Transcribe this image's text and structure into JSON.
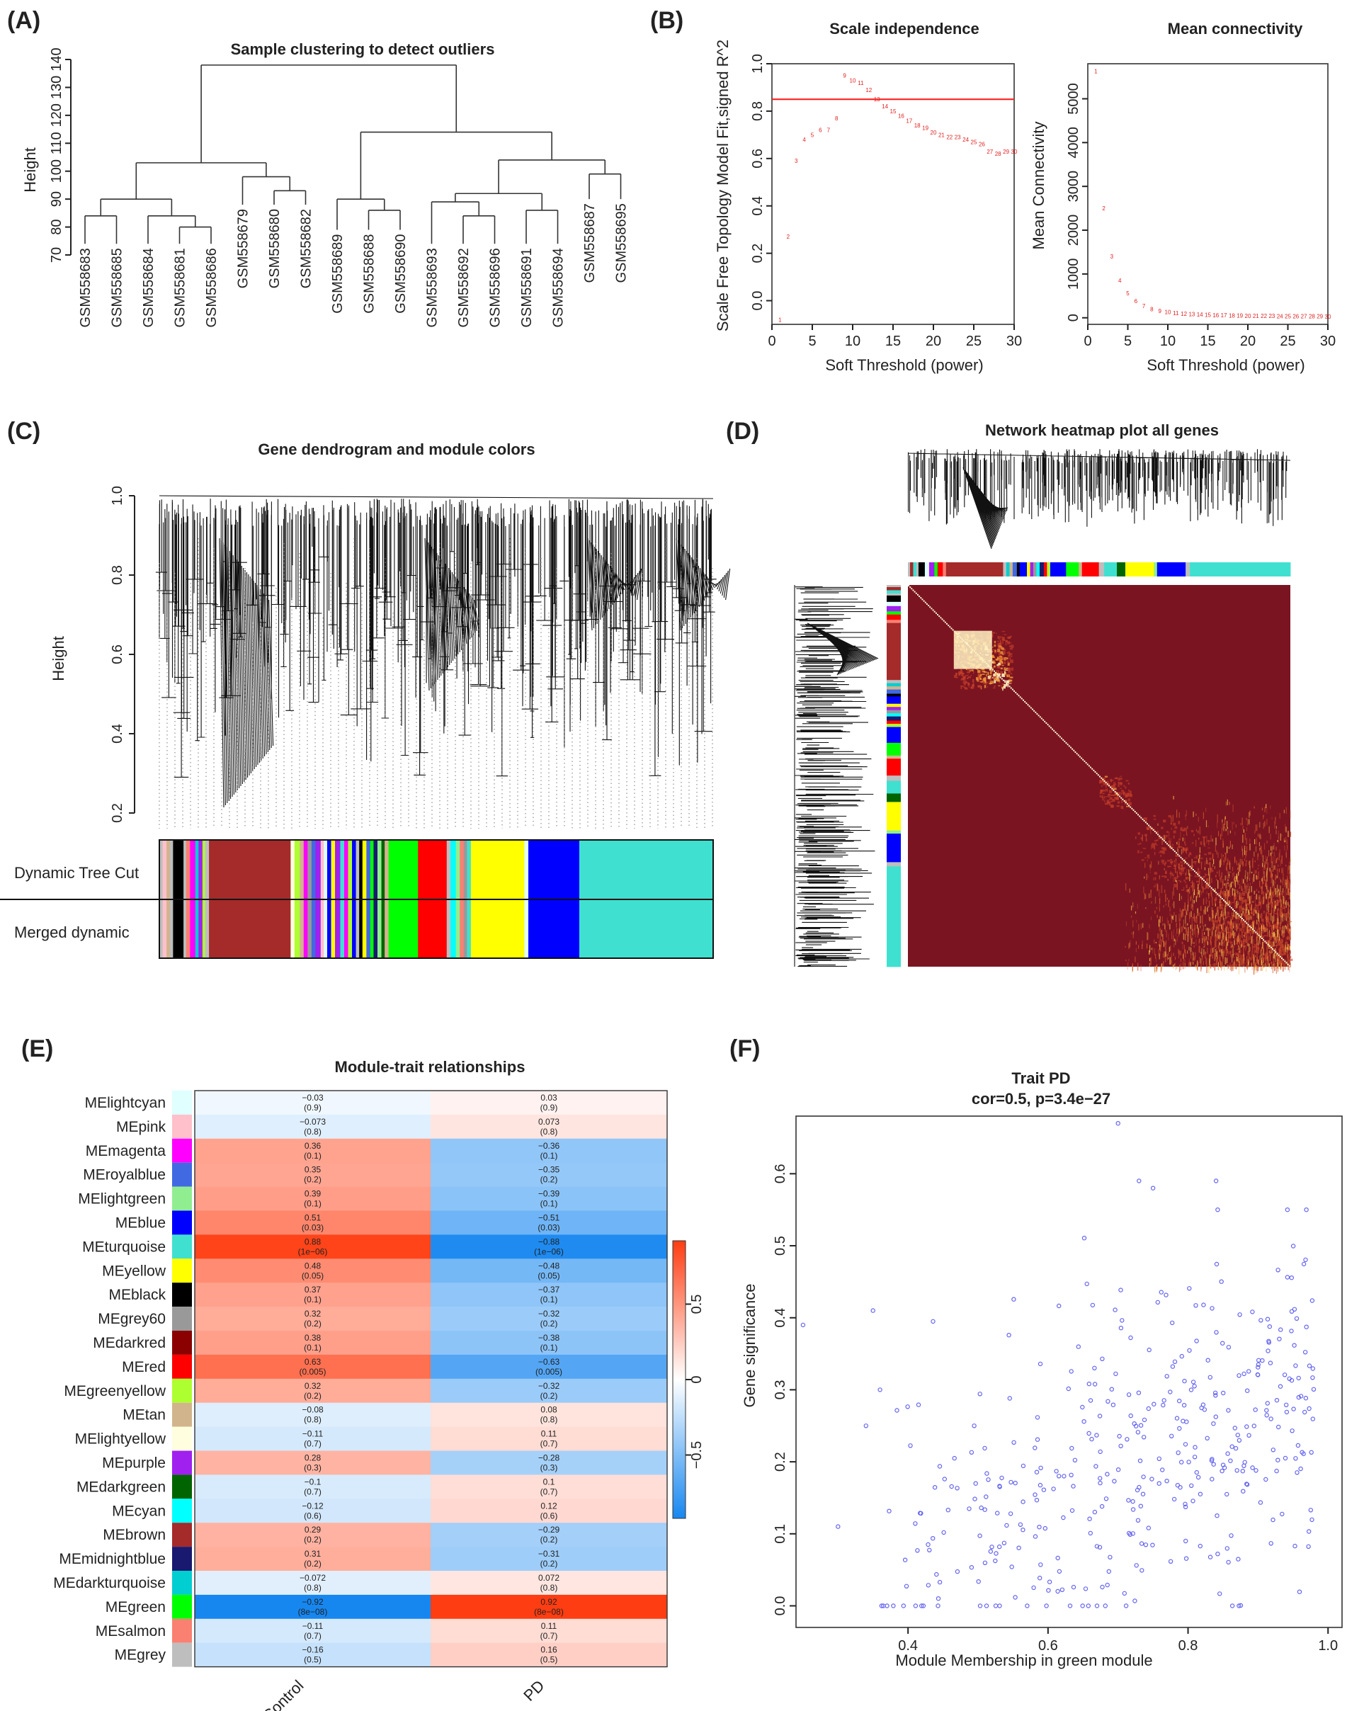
{
  "colors": {
    "red_line": "#ff2020",
    "point_red": "#e02020",
    "scatter_blue": "#6464f0",
    "heat_dark": "#7b1421",
    "pos_red": "#ff3d12",
    "neg_blue": "#1787f0"
  },
  "module_colors": {
    "lightcyan": "#e0ffff",
    "pink": "#ffc0cb",
    "magenta": "#ff00ff",
    "royalblue": "#4169e1",
    "lightgreen": "#90ee90",
    "blue": "#0000ff",
    "turquoise": "#40e0d0",
    "yellow": "#ffff00",
    "black": "#000000",
    "grey60": "#999999",
    "darkred": "#8b0000",
    "red": "#ff0000",
    "greenyellow": "#adff2f",
    "tan": "#d2b48c",
    "lightyellow": "#ffffe0",
    "purple": "#a020f0",
    "darkgreen": "#006400",
    "cyan": "#00ffff",
    "brown": "#a52a2a",
    "midnightblue": "#191970",
    "darkturquoise": "#00ced1",
    "green": "#00ff00",
    "salmon": "#fa8072",
    "grey": "#bebebe"
  },
  "chart_data": [
    {
      "id": "A",
      "type": "dendrogram",
      "panel_label": "(A)",
      "title": "Sample clustering to detect outliers",
      "ylabel": "Height",
      "ylim": [
        70,
        140
      ],
      "yticks": [
        "70",
        "80",
        "90",
        "100",
        "110",
        "120",
        "130",
        "140"
      ],
      "leaves": [
        "GSM558683",
        "GSM558685",
        "GSM558684",
        "GSM558681",
        "GSM558686",
        "GSM558679",
        "GSM558680",
        "GSM558682",
        "GSM558689",
        "GSM558688",
        "GSM558690",
        "GSM558693",
        "GSM558692",
        "GSM558696",
        "GSM558691",
        "GSM558694",
        "GSM558687",
        "GSM558695"
      ],
      "merges": [
        [
          3,
          4,
          80
        ],
        [
          0,
          1,
          84
        ],
        [
          2,
          "c0",
          84
        ],
        [
          "c1",
          "c2",
          90
        ],
        [
          6,
          7,
          93
        ],
        [
          5,
          "c4",
          98
        ],
        [
          "c3",
          "c5",
          103
        ],
        [
          9,
          10,
          86
        ],
        [
          8,
          "c7",
          90
        ],
        [
          14,
          15,
          86
        ],
        [
          12,
          13,
          84
        ],
        [
          11,
          "c10",
          89
        ],
        [
          "c11",
          "c9",
          92
        ],
        [
          16,
          17,
          99
        ],
        [
          "c12",
          "c13",
          104
        ],
        [
          "c8",
          "c14",
          114
        ],
        [
          "c6",
          "c15",
          138
        ]
      ]
    },
    {
      "id": "B1",
      "type": "scatter",
      "panel_label": "(B)",
      "title": "Scale independence",
      "xlabel": "Soft Threshold (power)",
      "ylabel": "Scale Free Topology Model Fit,signed R^2",
      "xlim": [
        0,
        30
      ],
      "ylim": [
        -0.1,
        1.0
      ],
      "xticks": [
        "0",
        "5",
        "10",
        "15",
        "20",
        "25",
        "30"
      ],
      "yticks": [
        "0.0",
        "0.2",
        "0.4",
        "0.6",
        "0.8",
        "1.0"
      ],
      "hline": 0.85,
      "x": [
        1,
        2,
        3,
        4,
        5,
        6,
        7,
        8,
        9,
        10,
        11,
        12,
        13,
        14,
        15,
        16,
        17,
        18,
        19,
        20,
        21,
        22,
        23,
        24,
        25,
        26,
        27,
        28,
        29,
        30
      ],
      "y": [
        -0.08,
        0.27,
        0.59,
        0.68,
        0.7,
        0.72,
        0.72,
        0.77,
        0.95,
        0.93,
        0.92,
        0.89,
        0.85,
        0.82,
        0.8,
        0.78,
        0.76,
        0.74,
        0.73,
        0.71,
        0.7,
        0.69,
        0.69,
        0.68,
        0.67,
        0.66,
        0.63,
        0.62,
        0.63,
        0.63
      ],
      "labels": [
        "1",
        "2",
        "3",
        "4",
        "5",
        "6",
        "7",
        "8",
        "9",
        "10",
        "11",
        "12",
        "13",
        "14",
        "15",
        "16",
        "17",
        "18",
        "19",
        "20",
        "21",
        "22",
        "23",
        "24",
        "25",
        "26",
        "27",
        "28",
        "29",
        "30"
      ]
    },
    {
      "id": "B2",
      "type": "scatter",
      "title": "Mean connectivity",
      "xlabel": "Soft Threshold (power)",
      "ylabel": "Mean Connectivity",
      "xlim": [
        0,
        30
      ],
      "ylim": [
        -150,
        5800
      ],
      "xticks": [
        "0",
        "5",
        "10",
        "15",
        "20",
        "25",
        "30"
      ],
      "yticks": [
        "0",
        "1000",
        "2000",
        "3000",
        "4000",
        "5000"
      ],
      "x": [
        1,
        2,
        3,
        4,
        5,
        6,
        7,
        8,
        9,
        10,
        11,
        12,
        13,
        14,
        15,
        16,
        17,
        18,
        19,
        20,
        21,
        22,
        23,
        24,
        25,
        26,
        27,
        28,
        29,
        30
      ],
      "y": [
        5630,
        2500,
        1400,
        850,
        560,
        380,
        270,
        200,
        160,
        130,
        110,
        95,
        85,
        75,
        68,
        62,
        57,
        53,
        50,
        47,
        44,
        42,
        40,
        38,
        36,
        35,
        34,
        33,
        32,
        31
      ],
      "labels": [
        "1",
        "2",
        "3",
        "4",
        "5",
        "6",
        "7",
        "8",
        "9",
        "10",
        "11",
        "12",
        "13",
        "14",
        "15",
        "16",
        "17",
        "18",
        "19",
        "20",
        "21",
        "22",
        "23",
        "24",
        "25",
        "26",
        "27",
        "28",
        "29",
        "30"
      ]
    },
    {
      "id": "C",
      "type": "dendrogram_colorbars",
      "panel_label": "(C)",
      "title": "Gene dendrogram and module colors",
      "ylabel": "Height",
      "ylim": [
        0.2,
        1.0
      ],
      "yticks": [
        "0.2",
        "0.4",
        "0.6",
        "0.8",
        "1.0"
      ],
      "row_labels": [
        "Dynamic Tree Cut",
        "Merged dynamic"
      ],
      "color_segments": [
        [
          "grey",
          0.5
        ],
        [
          "pink",
          0.6
        ],
        [
          "tan",
          0.5
        ],
        [
          "grey",
          0.5
        ],
        [
          "black",
          1.6
        ],
        [
          "grey",
          0.4
        ],
        [
          "salmon",
          0.6
        ],
        [
          "magenta",
          0.8
        ],
        [
          "darkturquoise",
          0.5
        ],
        [
          "purple",
          0.6
        ],
        [
          "greenyellow",
          0.4
        ],
        [
          "grey",
          0.6
        ],
        [
          "brown",
          12.5
        ],
        [
          "lightyellow",
          0.6
        ],
        [
          "greenyellow",
          0.8
        ],
        [
          "tan",
          0.6
        ],
        [
          "magenta",
          0.6
        ],
        [
          "grey60",
          0.6
        ],
        [
          "royalblue",
          0.6
        ],
        [
          "purple",
          0.8
        ],
        [
          "pink",
          0.5
        ],
        [
          "lightcyan",
          0.5
        ],
        [
          "blue",
          0.6
        ],
        [
          "yellow",
          0.6
        ],
        [
          "purple",
          0.8
        ],
        [
          "turquoise",
          0.6
        ],
        [
          "magenta",
          0.6
        ],
        [
          "greenyellow",
          0.6
        ],
        [
          "blue",
          0.6
        ],
        [
          "grey",
          0.5
        ],
        [
          "black",
          0.5
        ],
        [
          "yellow",
          0.6
        ],
        [
          "royalblue",
          0.6
        ],
        [
          "green",
          0.5
        ],
        [
          "midnightblue",
          0.6
        ],
        [
          "lightgreen",
          0.6
        ],
        [
          "darkgreen",
          0.5
        ],
        [
          "tan",
          0.6
        ],
        [
          "green",
          4.5
        ],
        [
          "red",
          4.4
        ],
        [
          "grey",
          0.6
        ],
        [
          "cyan",
          0.8
        ],
        [
          "lightgreen",
          0.6
        ],
        [
          "salmon",
          0.6
        ],
        [
          "grey60",
          0.5
        ],
        [
          "turquoise",
          0.6
        ],
        [
          "yellow",
          8.2
        ],
        [
          "lightcyan",
          0.6
        ],
        [
          "blue",
          7.8
        ],
        [
          "turquoise",
          20.5
        ]
      ]
    },
    {
      "id": "D",
      "type": "heatmap",
      "panel_label": "(D)",
      "title": "Network heatmap plot all genes",
      "color_segments": [
        [
          "grey",
          0.4
        ],
        [
          "brown",
          0.6
        ],
        [
          "turquoise",
          0.6
        ],
        [
          "grey",
          0.4
        ],
        [
          "black",
          1.2
        ],
        [
          "lightcyan",
          0.8
        ],
        [
          "purple",
          1.0
        ],
        [
          "green",
          0.6
        ],
        [
          "red",
          1.0
        ],
        [
          "salmon",
          0.6
        ],
        [
          "brown",
          10.8
        ],
        [
          "grey",
          0.6
        ],
        [
          "darkturquoise",
          0.6
        ],
        [
          "tan",
          0.6
        ],
        [
          "royalblue",
          0.8
        ],
        [
          "black",
          0.5
        ],
        [
          "blue",
          1.4
        ],
        [
          "yellow",
          0.6
        ],
        [
          "purple",
          0.6
        ],
        [
          "grey60",
          0.6
        ],
        [
          "cyan",
          0.6
        ],
        [
          "midnightblue",
          0.8
        ],
        [
          "red",
          0.6
        ],
        [
          "greenyellow",
          0.6
        ],
        [
          "blue",
          3.0
        ],
        [
          "green",
          2.4
        ],
        [
          "tan",
          0.6
        ],
        [
          "red",
          3.2
        ],
        [
          "grey",
          1.0
        ],
        [
          "turquoise",
          2.4
        ],
        [
          "darkgreen",
          1.6
        ],
        [
          "yellow",
          5.4
        ],
        [
          "lightgreen",
          0.6
        ],
        [
          "blue",
          5.4
        ],
        [
          "grey",
          0.8
        ],
        [
          "turquoise",
          19.0
        ]
      ],
      "blocks": [
        {
          "start": 0.12,
          "end": 0.27,
          "level": 0.95
        },
        {
          "start": 0.5,
          "end": 0.58,
          "level": 0.55
        },
        {
          "start": 0.6,
          "end": 0.8,
          "level": 0.4
        },
        {
          "start": 0.8,
          "end": 1.0,
          "level": 0.45
        }
      ]
    },
    {
      "id": "E",
      "type": "heatmap",
      "panel_label": "(E)",
      "title": "Module-trait relationships",
      "columns": [
        "Control",
        "PD"
      ],
      "modules": [
        "MElightcyan",
        "MEpink",
        "MEmagenta",
        "MEroyalblue",
        "MElightgreen",
        "MEblue",
        "MEturquoise",
        "MEyellow",
        "MEblack",
        "MEgrey60",
        "MEdarkred",
        "MEred",
        "MEgreenyellow",
        "MEtan",
        "MElightyellow",
        "MEpurple",
        "MEdarkgreen",
        "MEcyan",
        "MEbrown",
        "MEmidnightblue",
        "MEdarkturquoise",
        "MEgreen",
        "MEsalmon",
        "MEgrey"
      ],
      "swatches": [
        "lightcyan",
        "pink",
        "magenta",
        "royalblue",
        "lightgreen",
        "blue",
        "turquoise",
        "yellow",
        "black",
        "grey60",
        "darkred",
        "red",
        "greenyellow",
        "tan",
        "lightyellow",
        "purple",
        "darkgreen",
        "cyan",
        "brown",
        "midnightblue",
        "darkturquoise",
        "green",
        "salmon",
        "grey"
      ],
      "control_values": [
        -0.03,
        -0.073,
        0.36,
        0.35,
        0.39,
        0.51,
        0.88,
        0.48,
        0.37,
        0.32,
        0.38,
        0.63,
        0.32,
        -0.08,
        -0.11,
        0.28,
        -0.1,
        -0.12,
        0.29,
        0.31,
        -0.072,
        -0.92,
        -0.11,
        -0.16
      ],
      "control_text": [
        "-0.03",
        "-0.073",
        "0.36",
        "0.35",
        "0.39",
        "0.51",
        "0.88",
        "0.48",
        "0.37",
        "0.32",
        "0.38",
        "0.63",
        "0.32",
        "-0.08",
        "-0.11",
        "0.28",
        "-0.1",
        "-0.12",
        "0.29",
        "0.31",
        "-0.072",
        "-0.92",
        "-0.11",
        "-0.16"
      ],
      "control_p": [
        "(0.9)",
        "(0.8)",
        "(0.1)",
        "(0.2)",
        "(0.1)",
        "(0.03)",
        "(1e-06)",
        "(0.05)",
        "(0.1)",
        "(0.2)",
        "(0.1)",
        "(0.005)",
        "(0.2)",
        "(0.8)",
        "(0.7)",
        "(0.3)",
        "(0.7)",
        "(0.6)",
        "(0.2)",
        "(0.2)",
        "(0.8)",
        "(8e-08)",
        "(0.7)",
        "(0.5)"
      ],
      "pd_values": [
        0.03,
        0.073,
        -0.36,
        -0.35,
        -0.39,
        -0.51,
        -0.88,
        -0.48,
        -0.37,
        -0.32,
        -0.38,
        -0.63,
        -0.32,
        0.08,
        0.11,
        -0.28,
        0.1,
        0.12,
        -0.29,
        -0.31,
        0.072,
        0.92,
        0.11,
        0.16
      ],
      "pd_text": [
        "0.03",
        "0.073",
        "-0.36",
        "-0.35",
        "-0.39",
        "-0.51",
        "-0.88",
        "-0.48",
        "-0.37",
        "-0.32",
        "-0.38",
        "-0.63",
        "-0.32",
        "0.08",
        "0.11",
        "-0.28",
        "0.1",
        "0.12",
        "-0.29",
        "-0.31",
        "0.072",
        "0.92",
        "0.11",
        "0.16"
      ],
      "pd_p": [
        "(0.9)",
        "(0.8)",
        "(0.1)",
        "(0.2)",
        "(0.1)",
        "(0.03)",
        "(1e-06)",
        "(0.05)",
        "(0.1)",
        "(0.2)",
        "(0.1)",
        "(0.005)",
        "(0.2)",
        "(0.8)",
        "(0.7)",
        "(0.3)",
        "(0.7)",
        "(0.6)",
        "(0.2)",
        "(0.2)",
        "(0.8)",
        "(8e-08)",
        "(0.7)",
        "(0.5)"
      ],
      "legend_range": [
        -0.92,
        0.92
      ],
      "legend_ticks": [
        "0.5",
        "0",
        "-0.5"
      ]
    },
    {
      "id": "F",
      "type": "scatter",
      "panel_label": "(F)",
      "title": "Trait PD",
      "subtitle": "cor=0.5, p=3.4e−27",
      "xlabel": "Module Membership in green module",
      "ylabel": "Gene significance",
      "xlim": [
        0.24,
        1.02
      ],
      "ylim": [
        -0.03,
        0.68
      ],
      "xticks": [
        "0.4",
        "0.6",
        "0.8",
        "1.0"
      ],
      "yticks": [
        "0.0",
        "0.1",
        "0.2",
        "0.3",
        "0.4",
        "0.5",
        "0.6"
      ],
      "n_points": 400,
      "seed": 7,
      "highlight_points": [
        [
          0.25,
          0.39
        ],
        [
          0.3,
          0.11
        ],
        [
          0.34,
          0.25
        ],
        [
          0.35,
          0.41
        ],
        [
          0.36,
          0.3
        ],
        [
          0.7,
          0.67
        ],
        [
          0.73,
          0.59
        ],
        [
          0.75,
          0.58
        ],
        [
          0.84,
          0.59
        ]
      ]
    }
  ]
}
